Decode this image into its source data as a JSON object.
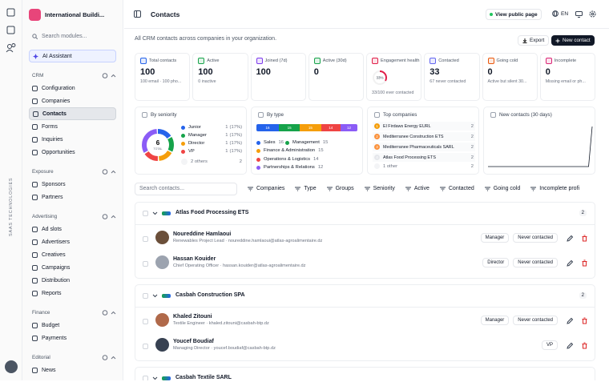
{
  "rail": {
    "brand": "SAAS TECHNOLOGIES"
  },
  "sidebar": {
    "workspace": "International Buildi...",
    "search": "Search modules...",
    "ai": "AI Assistant",
    "sections": [
      {
        "title": "CRM",
        "items": [
          {
            "label": "Configuration"
          },
          {
            "label": "Companies"
          },
          {
            "label": "Contacts",
            "active": true
          },
          {
            "label": "Forms"
          },
          {
            "label": "Inquiries"
          },
          {
            "label": "Opportunities"
          }
        ]
      },
      {
        "title": "Exposure",
        "items": [
          {
            "label": "Sponsors"
          },
          {
            "label": "Partners"
          }
        ]
      },
      {
        "title": "Advertising",
        "items": [
          {
            "label": "Ad slots"
          },
          {
            "label": "Advertisers"
          },
          {
            "label": "Creatives"
          },
          {
            "label": "Campaigns"
          },
          {
            "label": "Distribution"
          },
          {
            "label": "Reports"
          }
        ]
      },
      {
        "title": "Finance",
        "items": [
          {
            "label": "Budget"
          },
          {
            "label": "Payments"
          }
        ]
      },
      {
        "title": "Editorial",
        "items": [
          {
            "label": "News"
          }
        ]
      }
    ]
  },
  "header": {
    "title": "Contacts",
    "public_link": "View public page",
    "lang": "EN"
  },
  "page": {
    "subtitle": "All CRM contacts across companies in your organization.",
    "export": "Export",
    "new_contact": "New contact"
  },
  "kpis": [
    {
      "label": "Total contacts",
      "value": 100,
      "note": "100 email · 100 pho...",
      "color": "#2563eb"
    },
    {
      "label": "Active",
      "value": 100,
      "note": "0 inactive",
      "color": "#16a34a"
    },
    {
      "label": "Joined (7d)",
      "value": 100,
      "color": "#7c3aed"
    },
    {
      "label": "Active (30d)",
      "value": 0,
      "color": "#16a34a"
    },
    {
      "label": "Engagement health",
      "ring": {
        "value": 33,
        "label": "33%"
      },
      "note": "33/100 ever contacted",
      "color": "#e11d48"
    },
    {
      "label": "Contacted",
      "value": 33,
      "note": "67 never contacted",
      "color": "#6366f1"
    },
    {
      "label": "Going cold",
      "value": 0,
      "note": "Active but silent 30...",
      "color": "#ea580c"
    },
    {
      "label": "Incomplete",
      "value": 0,
      "note": "Missing email or ph...",
      "color": "#db2777"
    }
  ],
  "seniority": {
    "title": "By seniority",
    "total": 6,
    "total_label": "TOTAL",
    "items": [
      {
        "name": "Junior",
        "count": 1,
        "pct": "(17%)",
        "color": "#2563eb"
      },
      {
        "name": "Manager",
        "count": 1,
        "pct": "(17%)",
        "color": "#16a34a"
      },
      {
        "name": "Director",
        "count": 1,
        "pct": "(17%)",
        "color": "#f59e0b"
      },
      {
        "name": "VP",
        "count": 1,
        "pct": "(17%)",
        "color": "#ef4444"
      }
    ],
    "others": {
      "name": "2 others",
      "count": 2,
      "color": "#8b5cf6"
    }
  },
  "types": {
    "title": "By type",
    "items": [
      {
        "name": "Sales",
        "value": 16,
        "color": "#2563eb"
      },
      {
        "name": "Management",
        "value": 15,
        "color": "#16a34a"
      },
      {
        "name": "Finance & Administration",
        "value": 15,
        "color": "#f59e0b"
      },
      {
        "name": "Operations & Logistics",
        "value": 14,
        "color": "#ef4444"
      },
      {
        "name": "Partnerships & Relations",
        "value": 12,
        "color": "#8b5cf6"
      }
    ]
  },
  "companies": {
    "title": "Top companies",
    "items": [
      {
        "rank": 1,
        "name": "El Firdaws Energy EURL",
        "count": 2
      },
      {
        "rank": 2,
        "name": "Mediterranee Construction ETS",
        "count": 2
      },
      {
        "rank": 3,
        "name": "Mediterranee Pharmaceuticals SARL",
        "count": 2
      },
      {
        "rank": 4,
        "name": "Atlas Food Processing ETS",
        "count": 2
      }
    ],
    "other": {
      "name": "1 other",
      "count": 2
    }
  },
  "new_contacts": {
    "title": "New contacts (30 days)",
    "values": [
      0,
      0,
      0,
      0,
      0,
      0,
      0,
      0,
      0,
      0,
      0,
      0,
      0,
      0,
      0,
      0,
      0,
      0,
      0,
      0,
      0,
      0,
      0,
      0,
      0,
      0,
      0,
      0,
      0,
      100
    ]
  },
  "filters": {
    "search": "Search contacts...",
    "items": [
      "Companies",
      "Type",
      "Groups",
      "Seniority",
      "Active",
      "Contacted",
      "Going cold",
      "Incomplete profi"
    ]
  },
  "groups": [
    {
      "company": "Atlas Food Processing ETS",
      "count": 2,
      "contacts": [
        {
          "name": "Noureddine Hamlaoui",
          "detail": "Renewables Project Lead · noureddine.hamlaoui@atlas-agroalimentaire.dz",
          "seniority": "Manager",
          "status": "Never contacted",
          "avatar": "#6b4f3a"
        },
        {
          "name": "Hassan Kouider",
          "detail": "Chief Operating Officer · hassan.kouider@atlas-agroalimentaire.dz",
          "seniority": "Director",
          "status": "Never contacted",
          "avatar": "#9ca3af"
        }
      ]
    },
    {
      "company": "Casbah Construction SPA",
      "count": 2,
      "contacts": [
        {
          "name": "Khaled Zitouni",
          "detail": "Textile Engineer · khaled.zitouni@casbah-btp.dz",
          "seniority": "Manager",
          "status": "Never contacted",
          "avatar": "#b0694a"
        },
        {
          "name": "Youcef Boudiaf",
          "detail": "Managing Director · youcef.boudiaf@casbah-btp.dz",
          "seniority": "VP",
          "avatar": "#374151"
        }
      ]
    },
    {
      "company": "Casbah Textile SARL",
      "contacts": []
    }
  ]
}
